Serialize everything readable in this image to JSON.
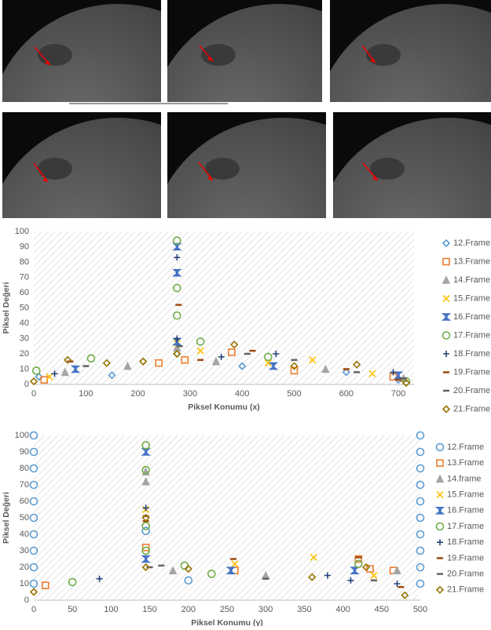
{
  "chart_data": [
    {
      "type": "scatter",
      "x_label": "Piksel Konumu (x)",
      "y_label": "Piksel Değeri",
      "xlim": [
        0,
        730
      ],
      "ylim": [
        0,
        100
      ],
      "xticks": [
        0,
        100,
        200,
        300,
        400,
        500,
        600,
        700
      ],
      "yticks": [
        0,
        10,
        20,
        30,
        40,
        50,
        60,
        70,
        80,
        90,
        100
      ],
      "legend": "right",
      "series": [
        {
          "name": "12.Frame",
          "color": "#5b9bd5",
          "marker": "diamond",
          "x": [
            10,
            150,
            275,
            400,
            600,
            700
          ],
          "values": [
            5,
            6,
            20,
            12,
            8,
            3
          ]
        },
        {
          "name": "13.Frame",
          "color": "#ed7d31",
          "marker": "square",
          "x": [
            20,
            240,
            290,
            380,
            500,
            690
          ],
          "values": [
            3,
            14,
            16,
            21,
            9,
            5
          ]
        },
        {
          "name": "14.Frame",
          "color": "#a5a5a5",
          "marker": "triangle",
          "x": [
            60,
            180,
            275,
            350,
            560,
            710
          ],
          "values": [
            8,
            12,
            24,
            15,
            10,
            4
          ]
        },
        {
          "name": "15.Frame",
          "color": "#ffc000",
          "marker": "x",
          "x": [
            30,
            275,
            320,
            450,
            535,
            650
          ],
          "values": [
            5,
            27,
            22,
            14,
            16,
            7
          ]
        },
        {
          "name": "16.Frame",
          "color": "#4472c4",
          "marker": "star",
          "x": [
            80,
            275,
            275,
            275,
            460,
            700
          ],
          "values": [
            10,
            90,
            73,
            28,
            12,
            6
          ]
        },
        {
          "name": "17.Frame",
          "color": "#70ad47",
          "marker": "circle",
          "x": [
            5,
            110,
            275,
            275,
            275,
            320,
            450,
            715
          ],
          "values": [
            9,
            17,
            94,
            63,
            45,
            28,
            18,
            2
          ]
        },
        {
          "name": "18.Frame",
          "color": "#264478",
          "marker": "plus",
          "x": [
            40,
            275,
            275,
            360,
            465,
            690
          ],
          "values": [
            7,
            83,
            30,
            18,
            20,
            8
          ]
        },
        {
          "name": "19.Frame",
          "color": "#9e480e",
          "marker": "dash",
          "x": [
            70,
            278,
            320,
            420,
            600,
            700
          ],
          "values": [
            15,
            52,
            16,
            22,
            10,
            3
          ]
        },
        {
          "name": "20.Frame",
          "color": "#636363",
          "marker": "dash",
          "x": [
            100,
            280,
            410,
            500,
            620,
            710
          ],
          "values": [
            12,
            25,
            20,
            16,
            8,
            4
          ]
        },
        {
          "name": "21.Frame",
          "color": "#997300",
          "marker": "diamond",
          "x": [
            0,
            65,
            140,
            210,
            275,
            385,
            500,
            620,
            715
          ],
          "values": [
            2,
            16,
            14,
            15,
            20,
            26,
            12,
            13,
            1
          ]
        }
      ]
    },
    {
      "type": "scatter",
      "x_label": "Piksel Konumu (y)",
      "y_label": "Piksel Değeri",
      "xlim": [
        0,
        500
      ],
      "ylim": [
        0,
        100
      ],
      "xticks": [
        0,
        50,
        100,
        150,
        200,
        250,
        300,
        350,
        400,
        450,
        500
      ],
      "yticks": [
        0,
        10,
        20,
        30,
        40,
        50,
        60,
        70,
        80,
        90,
        100
      ],
      "legend": "right",
      "series": [
        {
          "name": "12.Frame",
          "color": "#5b9bd5",
          "marker": "circle",
          "x": [
            0,
            0,
            0,
            0,
            0,
            0,
            0,
            0,
            0,
            0,
            500,
            500,
            500,
            500,
            500,
            500,
            500,
            500,
            500,
            500,
            145,
            200
          ],
          "values": [
            10,
            20,
            30,
            40,
            50,
            60,
            70,
            80,
            90,
            100,
            10,
            20,
            30,
            40,
            50,
            60,
            70,
            80,
            90,
            100,
            42,
            12
          ]
        },
        {
          "name": "13.Frame",
          "color": "#ed7d31",
          "marker": "square",
          "x": [
            15,
            145,
            260,
            420,
            435,
            465
          ],
          "values": [
            9,
            32,
            18,
            25,
            19,
            18
          ]
        },
        {
          "name": "14.frame",
          "color": "#a5a5a5",
          "marker": "triangle",
          "x": [
            145,
            145,
            180,
            300,
            470
          ],
          "values": [
            72,
            78,
            18,
            15,
            18
          ]
        },
        {
          "name": "15.Frame",
          "color": "#ffc000",
          "marker": "x",
          "x": [
            145,
            260,
            362,
            440
          ],
          "values": [
            55,
            22,
            26,
            15
          ]
        },
        {
          "name": "16.Frame",
          "color": "#4472c4",
          "marker": "star",
          "x": [
            145,
            145,
            255,
            415
          ],
          "values": [
            90,
            25,
            18,
            18
          ]
        },
        {
          "name": "17.Frame",
          "color": "#70ad47",
          "marker": "circle",
          "x": [
            145,
            145,
            145,
            145,
            195,
            230,
            420,
            50
          ],
          "values": [
            94,
            79,
            45,
            30,
            21,
            16,
            22,
            11
          ]
        },
        {
          "name": "18.Frame",
          "color": "#264478",
          "marker": "plus",
          "x": [
            85,
            145,
            380,
            410,
            470
          ],
          "values": [
            13,
            56,
            15,
            12,
            10
          ]
        },
        {
          "name": "19.Frame",
          "color": "#9e480e",
          "marker": "dash",
          "x": [
            145,
            145,
            258,
            420,
            475
          ],
          "values": [
            48,
            51,
            25,
            26,
            8
          ]
        },
        {
          "name": "20.Frame",
          "color": "#636363",
          "marker": "dash",
          "x": [
            150,
            165,
            300,
            440
          ],
          "values": [
            20,
            21,
            13,
            12
          ]
        },
        {
          "name": "21.Frame",
          "color": "#997300",
          "marker": "diamond",
          "x": [
            0,
            145,
            145,
            200,
            360,
            430,
            480
          ],
          "values": [
            5,
            50,
            20,
            19,
            14,
            20,
            3
          ]
        }
      ]
    }
  ]
}
